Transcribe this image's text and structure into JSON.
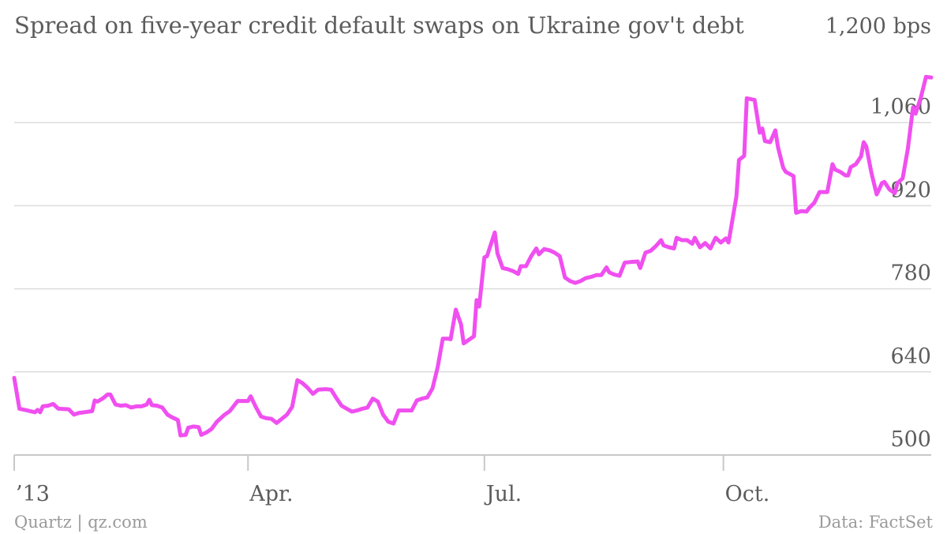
{
  "chart_data": {
    "type": "line",
    "title": "Spread on five-year credit default swaps on Ukraine gov't debt",
    "y_unit_label": "1,200 bps",
    "ylim": [
      500,
      1200
    ],
    "y_ticks": [
      {
        "value": 1200,
        "label": "1,200 bps"
      },
      {
        "value": 1060,
        "label": "1,060"
      },
      {
        "value": 920,
        "label": "920"
      },
      {
        "value": 780,
        "label": "780"
      },
      {
        "value": 640,
        "label": "640"
      },
      {
        "value": 500,
        "label": "500"
      }
    ],
    "xlim": [
      "2013-01-01",
      "2013-12-20"
    ],
    "x_ticks": [
      {
        "date": "2013-01-01",
        "label": "’13"
      },
      {
        "date": "2013-04-01",
        "label": "Apr."
      },
      {
        "date": "2013-07-01",
        "label": "Jul."
      },
      {
        "date": "2013-10-01",
        "label": "Oct."
      }
    ],
    "grid": true,
    "legend": "none",
    "source": "Data: FactSet",
    "credit": "Quartz | qz.com",
    "series": [
      {
        "color": "#f04ff0",
        "points": [
          [
            "2013-01-01",
            630
          ],
          [
            "2013-01-03",
            578
          ],
          [
            "2013-01-06",
            575
          ],
          [
            "2013-01-09",
            572
          ],
          [
            "2013-01-10",
            576
          ],
          [
            "2013-01-11",
            572
          ],
          [
            "2013-01-12",
            582
          ],
          [
            "2013-01-14",
            583
          ],
          [
            "2013-01-16",
            586
          ],
          [
            "2013-01-18",
            578
          ],
          [
            "2013-01-22",
            577
          ],
          [
            "2013-01-24",
            568
          ],
          [
            "2013-01-26",
            571
          ],
          [
            "2013-01-28",
            572
          ],
          [
            "2013-01-31",
            574
          ],
          [
            "2013-02-01",
            592
          ],
          [
            "2013-02-02",
            590
          ],
          [
            "2013-02-04",
            595
          ],
          [
            "2013-02-06",
            602
          ],
          [
            "2013-02-07",
            602
          ],
          [
            "2013-02-09",
            585
          ],
          [
            "2013-02-11",
            583
          ],
          [
            "2013-02-13",
            584
          ],
          [
            "2013-02-15",
            580
          ],
          [
            "2013-02-17",
            582
          ],
          [
            "2013-02-19",
            582
          ],
          [
            "2013-02-21",
            585
          ],
          [
            "2013-02-22",
            593
          ],
          [
            "2013-02-23",
            584
          ],
          [
            "2013-02-25",
            583
          ],
          [
            "2013-02-27",
            580
          ],
          [
            "2013-03-01",
            568
          ],
          [
            "2013-03-03",
            563
          ],
          [
            "2013-03-05",
            559
          ],
          [
            "2013-03-06",
            533
          ],
          [
            "2013-03-08",
            534
          ],
          [
            "2013-03-09",
            546
          ],
          [
            "2013-03-11",
            548
          ],
          [
            "2013-03-13",
            547
          ],
          [
            "2013-03-14",
            534
          ],
          [
            "2013-03-16",
            538
          ],
          [
            "2013-03-18",
            544
          ],
          [
            "2013-03-20",
            556
          ],
          [
            "2013-03-21",
            560
          ],
          [
            "2013-03-23",
            568
          ],
          [
            "2013-03-25",
            574
          ],
          [
            "2013-03-28",
            591
          ],
          [
            "2013-04-01",
            591
          ],
          [
            "2013-04-02",
            599
          ],
          [
            "2013-04-04",
            581
          ],
          [
            "2013-04-06",
            565
          ],
          [
            "2013-04-08",
            562
          ],
          [
            "2013-04-10",
            561
          ],
          [
            "2013-04-12",
            554
          ],
          [
            "2013-04-14",
            561
          ],
          [
            "2013-04-16",
            568
          ],
          [
            "2013-04-18",
            581
          ],
          [
            "2013-04-20",
            626
          ],
          [
            "2013-04-22",
            621
          ],
          [
            "2013-04-24",
            613
          ],
          [
            "2013-04-26",
            603
          ],
          [
            "2013-04-28",
            610
          ],
          [
            "2013-05-01",
            611
          ],
          [
            "2013-05-03",
            610
          ],
          [
            "2013-05-05",
            596
          ],
          [
            "2013-05-07",
            583
          ],
          [
            "2013-05-09",
            578
          ],
          [
            "2013-05-11",
            573
          ],
          [
            "2013-05-13",
            575
          ],
          [
            "2013-05-15",
            578
          ],
          [
            "2013-05-17",
            580
          ],
          [
            "2013-05-19",
            595
          ],
          [
            "2013-05-21",
            590
          ],
          [
            "2013-05-23",
            568
          ],
          [
            "2013-05-25",
            556
          ],
          [
            "2013-05-27",
            553
          ],
          [
            "2013-05-29",
            575
          ],
          [
            "2013-06-01",
            575
          ],
          [
            "2013-06-03",
            575
          ],
          [
            "2013-06-05",
            592
          ],
          [
            "2013-06-07",
            595
          ],
          [
            "2013-06-09",
            597
          ],
          [
            "2013-06-11",
            612
          ],
          [
            "2013-06-13",
            648
          ],
          [
            "2013-06-15",
            696
          ],
          [
            "2013-06-17",
            696
          ],
          [
            "2013-06-18",
            695
          ],
          [
            "2013-06-20",
            745
          ],
          [
            "2013-06-22",
            720
          ],
          [
            "2013-06-23",
            688
          ],
          [
            "2013-06-25",
            694
          ],
          [
            "2013-06-27",
            700
          ],
          [
            "2013-06-28",
            761
          ],
          [
            "2013-06-29",
            750
          ],
          [
            "2013-07-01",
            833
          ],
          [
            "2013-07-02",
            835
          ],
          [
            "2013-07-05",
            875
          ],
          [
            "2013-07-06",
            840
          ],
          [
            "2013-07-08",
            815
          ],
          [
            "2013-07-10",
            813
          ],
          [
            "2013-07-12",
            810
          ],
          [
            "2013-07-14",
            805
          ],
          [
            "2013-07-15",
            818
          ],
          [
            "2013-07-17",
            818
          ],
          [
            "2013-07-19",
            835
          ],
          [
            "2013-07-21",
            848
          ],
          [
            "2013-07-22",
            838
          ],
          [
            "2013-07-24",
            847
          ],
          [
            "2013-07-26",
            845
          ],
          [
            "2013-07-28",
            841
          ],
          [
            "2013-07-30",
            835
          ],
          [
            "2013-08-01",
            799
          ],
          [
            "2013-08-03",
            793
          ],
          [
            "2013-08-05",
            790
          ],
          [
            "2013-08-07",
            793
          ],
          [
            "2013-08-09",
            798
          ],
          [
            "2013-08-11",
            800
          ],
          [
            "2013-08-13",
            803
          ],
          [
            "2013-08-15",
            803
          ],
          [
            "2013-08-17",
            816
          ],
          [
            "2013-08-18",
            808
          ],
          [
            "2013-08-20",
            804
          ],
          [
            "2013-08-22",
            802
          ],
          [
            "2013-08-24",
            824
          ],
          [
            "2013-08-26",
            825
          ],
          [
            "2013-08-29",
            826
          ],
          [
            "2013-08-30",
            815
          ],
          [
            "2013-09-01",
            841
          ],
          [
            "2013-09-03",
            844
          ],
          [
            "2013-09-05",
            852
          ],
          [
            "2013-09-07",
            862
          ],
          [
            "2013-09-08",
            853
          ],
          [
            "2013-09-10",
            850
          ],
          [
            "2013-09-12",
            848
          ],
          [
            "2013-09-13",
            866
          ],
          [
            "2013-09-15",
            862
          ],
          [
            "2013-09-17",
            862
          ],
          [
            "2013-09-19",
            856
          ],
          [
            "2013-09-20",
            866
          ],
          [
            "2013-09-22",
            850
          ],
          [
            "2013-09-24",
            857
          ],
          [
            "2013-09-26",
            848
          ],
          [
            "2013-09-28",
            866
          ],
          [
            "2013-09-30",
            858
          ],
          [
            "2013-10-02",
            865
          ],
          [
            "2013-10-03",
            858
          ],
          [
            "2013-10-06",
            935
          ],
          [
            "2013-10-07",
            997
          ],
          [
            "2013-10-09",
            1004
          ],
          [
            "2013-10-10",
            1101
          ],
          [
            "2013-10-13",
            1098
          ],
          [
            "2013-10-15",
            1043
          ],
          [
            "2013-10-16",
            1050
          ],
          [
            "2013-10-17",
            1029
          ],
          [
            "2013-10-19",
            1027
          ],
          [
            "2013-10-21",
            1047
          ],
          [
            "2013-10-22",
            1019
          ],
          [
            "2013-10-24",
            984
          ],
          [
            "2013-10-25",
            977
          ],
          [
            "2013-10-28",
            970
          ],
          [
            "2013-10-29",
            908
          ],
          [
            "2013-10-31",
            911
          ],
          [
            "2013-11-02",
            910
          ],
          [
            "2013-11-03",
            916
          ],
          [
            "2013-11-05",
            925
          ],
          [
            "2013-11-07",
            943
          ],
          [
            "2013-11-10",
            943
          ],
          [
            "2013-11-12",
            990
          ],
          [
            "2013-11-13",
            981
          ],
          [
            "2013-11-15",
            977
          ],
          [
            "2013-11-17",
            971
          ],
          [
            "2013-11-18",
            971
          ],
          [
            "2013-11-19",
            985
          ],
          [
            "2013-11-21",
            990
          ],
          [
            "2013-11-23",
            1003
          ],
          [
            "2013-11-24",
            1027
          ],
          [
            "2013-11-25",
            1020
          ],
          [
            "2013-11-27",
            975
          ],
          [
            "2013-11-29",
            939
          ],
          [
            "2013-11-30",
            948
          ],
          [
            "2013-12-01",
            958
          ],
          [
            "2013-12-02",
            960
          ],
          [
            "2013-12-04",
            947
          ],
          [
            "2013-12-06",
            941
          ],
          [
            "2013-12-07",
            958
          ],
          [
            "2013-12-09",
            966
          ],
          [
            "2013-12-11",
            1016
          ],
          [
            "2013-12-13",
            1086
          ],
          [
            "2013-12-14",
            1075
          ],
          [
            "2013-12-16",
            1102
          ],
          [
            "2013-12-18",
            1137
          ],
          [
            "2013-12-20",
            1136
          ]
        ]
      }
    ]
  }
}
